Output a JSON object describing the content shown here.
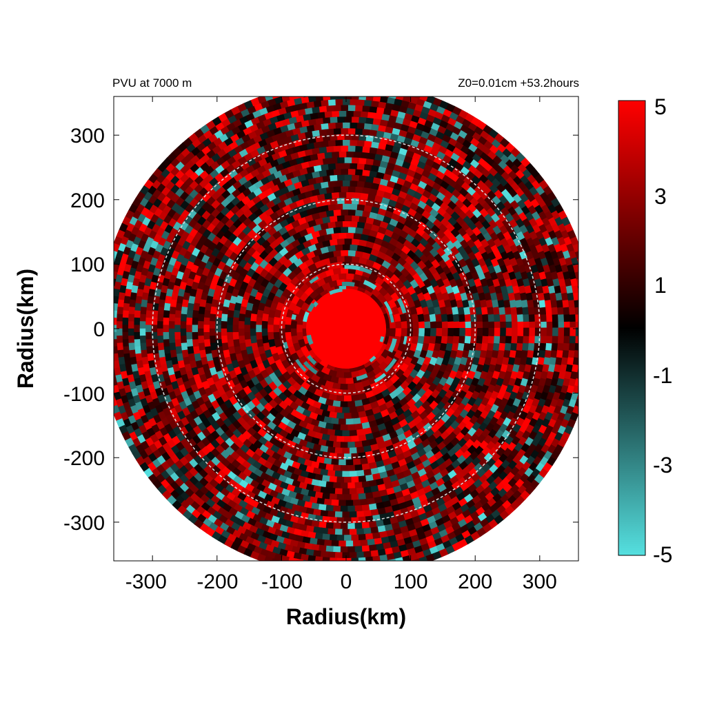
{
  "chart_data": {
    "type": "heatmap",
    "title_left": "PVU at  7000 m",
    "title_right": "Z0=0.01cm  +53.2hours",
    "xlabel": "Radius(km)",
    "ylabel": "Radius(km)",
    "xlim": [
      -360,
      360
    ],
    "ylim": [
      -360,
      360
    ],
    "x_ticks": [
      -300,
      -200,
      -100,
      0,
      100,
      200,
      300
    ],
    "y_ticks": [
      300,
      200,
      100,
      0,
      -100,
      -200,
      -300
    ],
    "range_rings_km": [
      100,
      200,
      300
    ],
    "domain_radius_km": 380,
    "colorbar": {
      "min": -5,
      "max": 5,
      "tick_labels": [
        "5",
        "3",
        "1",
        "-1",
        "-3",
        "-5"
      ],
      "tick_values": [
        5,
        3,
        1,
        -1,
        -3,
        -5
      ],
      "colors": {
        "low": "#55e0e0",
        "mid": "#000000",
        "high": "#ff0000"
      }
    },
    "field_summary": "Values saturate near +5 PVU inside ~60 km radius; outer rings are a mix of dark red (0 to 3 PVU) with scattered cyan patches (-1 to -5 PVU)."
  }
}
